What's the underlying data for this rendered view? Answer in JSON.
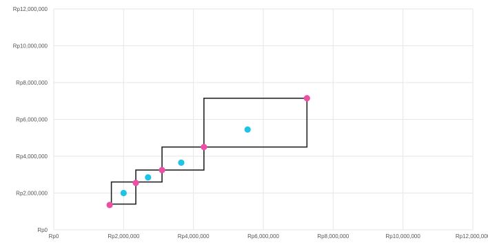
{
  "chart_data": {
    "type": "scatter",
    "x_ticks": [
      "Rp0",
      "Rp2,000,000",
      "Rp4,000,000",
      "Rp6,000,000",
      "Rp8,000,000",
      "Rp10,000,000",
      "Rp12,000,000"
    ],
    "y_ticks": [
      "Rp0",
      "Rp2,000,000",
      "Rp4,000,000",
      "Rp6,000,000",
      "Rp8,000,000",
      "Rp10,000,000",
      "Rp12,000,000"
    ],
    "tick_values": [
      0,
      2000000,
      4000000,
      6000000,
      8000000,
      10000000,
      12000000
    ],
    "xlim": [
      0,
      12000000
    ],
    "ylim": [
      0,
      12000000
    ],
    "grid": true,
    "legend": "none",
    "colors": {
      "pink": "#ec4fa3",
      "cyan": "#1ec3e6",
      "box": "#222222",
      "grid": "#e6e6e6"
    },
    "series": [
      {
        "values": [
          {
            "x": 1600000,
            "y": 1350000
          },
          {
            "x": 2350000,
            "y": 2550000
          },
          {
            "x": 3100000,
            "y": 3250000
          },
          {
            "x": 4300000,
            "y": 4500000
          },
          {
            "x": 7250000,
            "y": 7150000
          }
        ]
      },
      {
        "values": [
          {
            "x": 2000000,
            "y": 2000000
          },
          {
            "x": 2700000,
            "y": 2850000
          },
          {
            "x": 3650000,
            "y": 3650000
          },
          {
            "x": 5550000,
            "y": 5450000
          }
        ]
      }
    ],
    "boxes": [
      {
        "x0": 1650000,
        "x1": 2350000,
        "y0": 1400000,
        "y1": 2600000
      },
      {
        "x0": 2350000,
        "x1": 3100000,
        "y0": 2600000,
        "y1": 3250000
      },
      {
        "x0": 3100000,
        "x1": 4300000,
        "y0": 3250000,
        "y1": 4500000
      },
      {
        "x0": 4300000,
        "x1": 7250000,
        "y0": 4500000,
        "y1": 7150000
      }
    ]
  }
}
